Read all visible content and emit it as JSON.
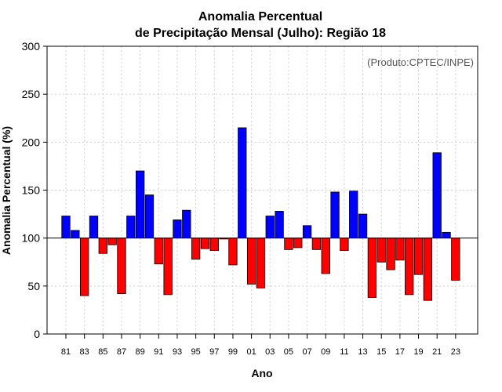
{
  "chart_data": {
    "type": "bar",
    "title_line1": "Anomalia Percentual",
    "title_line2": "de Precipitação Mensal (Julho): Região 18",
    "xlabel": "Ano",
    "ylabel": "Anomalia Percentual (%)",
    "note": "(Produto:CPTEC/INPE)",
    "baseline": 100,
    "ylim": [
      0,
      300
    ],
    "yticks": [
      0,
      50,
      100,
      150,
      200,
      250,
      300
    ],
    "grid": true,
    "above_color": "#0000ff",
    "below_color": "#ff0000",
    "categories": [
      "81",
      "82",
      "83",
      "84",
      "85",
      "86",
      "87",
      "88",
      "89",
      "90",
      "91",
      "92",
      "93",
      "94",
      "95",
      "96",
      "97",
      "98",
      "99",
      "00",
      "01",
      "02",
      "03",
      "04",
      "05",
      "06",
      "07",
      "08",
      "09",
      "10",
      "11",
      "12",
      "13",
      "14",
      "15",
      "16",
      "17",
      "18",
      "19",
      "20",
      "21",
      "22",
      "23"
    ],
    "tick_labels": [
      "81",
      "83",
      "85",
      "87",
      "89",
      "91",
      "93",
      "95",
      "97",
      "99",
      "01",
      "03",
      "05",
      "07",
      "09",
      "11",
      "13",
      "15",
      "17",
      "19",
      "21",
      "23"
    ],
    "values": [
      123,
      108,
      40,
      123,
      84,
      93,
      42,
      123,
      170,
      145,
      73,
      41,
      119,
      129,
      78,
      89,
      87,
      99,
      72,
      215,
      52,
      48,
      123,
      128,
      88,
      90,
      113,
      88,
      63,
      148,
      87,
      149,
      125,
      38,
      75,
      67,
      77,
      41,
      62,
      35,
      189,
      106,
      56
    ]
  }
}
